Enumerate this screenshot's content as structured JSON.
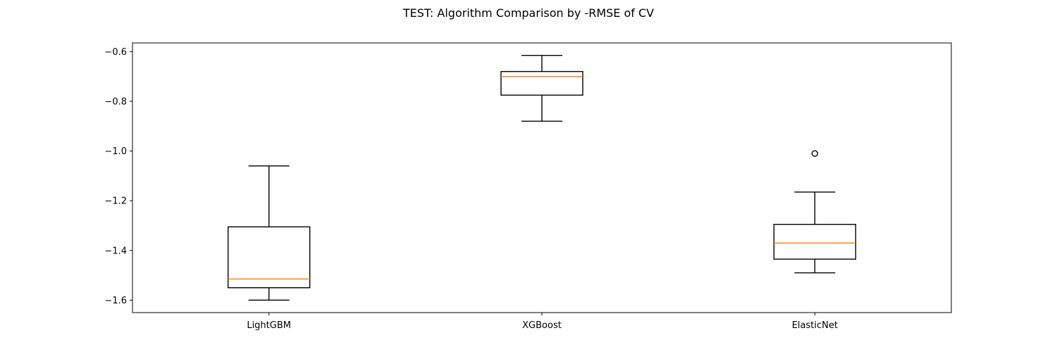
{
  "chart_data": {
    "type": "boxplot",
    "title": "TEST: Algorithm Comparison by -RMSE of CV",
    "xlabel": "",
    "ylabel": "",
    "categories": [
      "LightGBM",
      "XGBoost",
      "ElasticNet"
    ],
    "ylim": [
      -1.65,
      -0.565
    ],
    "yticks": [
      -1.6,
      -1.4,
      -1.2,
      -1.0,
      -0.8,
      -0.6
    ],
    "ytick_labels": [
      "−1.6",
      "−1.4",
      "−1.2",
      "−1.0",
      "−0.8",
      "−0.6"
    ],
    "grid": false,
    "boxes": [
      {
        "label": "LightGBM",
        "whisker_low": -1.6,
        "q1": -1.55,
        "median": -1.515,
        "q3": -1.305,
        "whisker_high": -1.06,
        "outliers": []
      },
      {
        "label": "XGBoost",
        "whisker_low": -0.88,
        "q1": -0.775,
        "median": -0.7,
        "q3": -0.68,
        "whisker_high": -0.615,
        "outliers": []
      },
      {
        "label": "ElasticNet",
        "whisker_low": -1.49,
        "q1": -1.435,
        "median": -1.37,
        "q3": -1.295,
        "whisker_high": -1.165,
        "outliers": [
          -1.01
        ]
      }
    ],
    "colors": {
      "box": "#000000",
      "median": "#ff7f0e",
      "axes": "#000000"
    }
  }
}
